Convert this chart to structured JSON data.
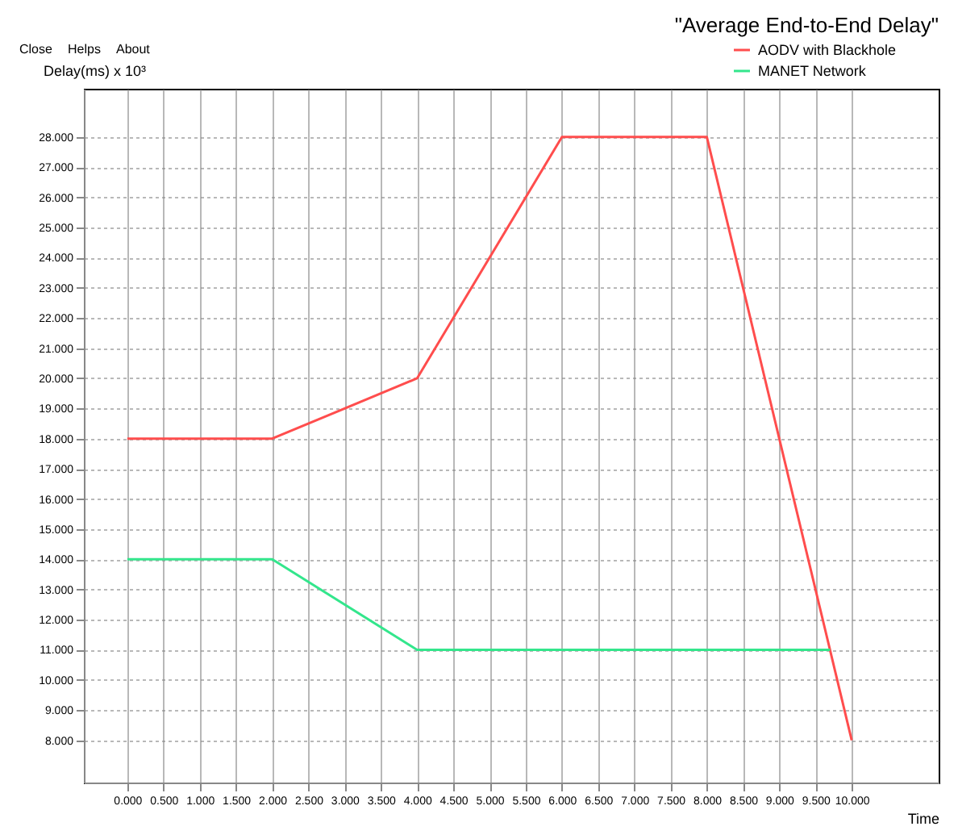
{
  "chart_data": {
    "type": "line",
    "title": "\"Average End-to-End Delay\"",
    "xlabel": "Time",
    "ylabel": "Delay(ms) x 10³",
    "annotations": [
      "Close",
      "Helps",
      "About"
    ],
    "x": [
      0,
      2,
      4,
      6,
      8,
      10
    ],
    "series": [
      {
        "name": "AODV with Blackhole",
        "color": "#ff4d4d",
        "values": [
          18,
          18,
          20,
          28,
          28,
          8
        ]
      },
      {
        "name": "MANET Network",
        "color": "#33e68c",
        "x": [
          0,
          2,
          4,
          9.7
        ],
        "values": [
          14,
          14,
          11,
          11
        ]
      }
    ],
    "xlim": [
      -0.6,
      11.2
    ],
    "ylim": [
      6.6,
      29.6
    ],
    "xticks": [
      {
        "value": 0,
        "label": "0.000"
      },
      {
        "value": 0.5,
        "label": "0.500"
      },
      {
        "value": 1,
        "label": "1.000"
      },
      {
        "value": 1.5,
        "label": "1.500"
      },
      {
        "value": 2,
        "label": "2.000"
      },
      {
        "value": 2.5,
        "label": "2.500"
      },
      {
        "value": 3,
        "label": "3.000"
      },
      {
        "value": 3.5,
        "label": "3.500"
      },
      {
        "value": 4,
        "label": "4.000"
      },
      {
        "value": 4.5,
        "label": "4.500"
      },
      {
        "value": 5,
        "label": "5.000"
      },
      {
        "value": 5.5,
        "label": "5.500"
      },
      {
        "value": 6,
        "label": "6.000"
      },
      {
        "value": 6.5,
        "label": "6.500"
      },
      {
        "value": 7,
        "label": "7.000"
      },
      {
        "value": 7.5,
        "label": "7.500"
      },
      {
        "value": 8,
        "label": "8.000"
      },
      {
        "value": 8.5,
        "label": "8.500"
      },
      {
        "value": 9,
        "label": "9.000"
      },
      {
        "value": 9.5,
        "label": "9.500"
      },
      {
        "value": 10,
        "label": "10.000"
      }
    ],
    "yticks": [
      {
        "value": 8,
        "label": "8.000"
      },
      {
        "value": 9,
        "label": "9.000"
      },
      {
        "value": 10,
        "label": "10.000"
      },
      {
        "value": 11,
        "label": "11.000"
      },
      {
        "value": 12,
        "label": "12.000"
      },
      {
        "value": 13,
        "label": "13.000"
      },
      {
        "value": 14,
        "label": "14.000"
      },
      {
        "value": 15,
        "label": "15.000"
      },
      {
        "value": 16,
        "label": "16.000"
      },
      {
        "value": 17,
        "label": "17.000"
      },
      {
        "value": 18,
        "label": "18.000"
      },
      {
        "value": 19,
        "label": "19.000"
      },
      {
        "value": 20,
        "label": "20.000"
      },
      {
        "value": 21,
        "label": "21.000"
      },
      {
        "value": 22,
        "label": "22.000"
      },
      {
        "value": 23,
        "label": "23.000"
      },
      {
        "value": 24,
        "label": "24.000"
      },
      {
        "value": 25,
        "label": "25.000"
      },
      {
        "value": 26,
        "label": "26.000"
      },
      {
        "value": 27,
        "label": "27.000"
      },
      {
        "value": 28,
        "label": "28.000"
      }
    ],
    "grid": true,
    "legend": "top right",
    "marker": "none",
    "line_style": "solid"
  }
}
